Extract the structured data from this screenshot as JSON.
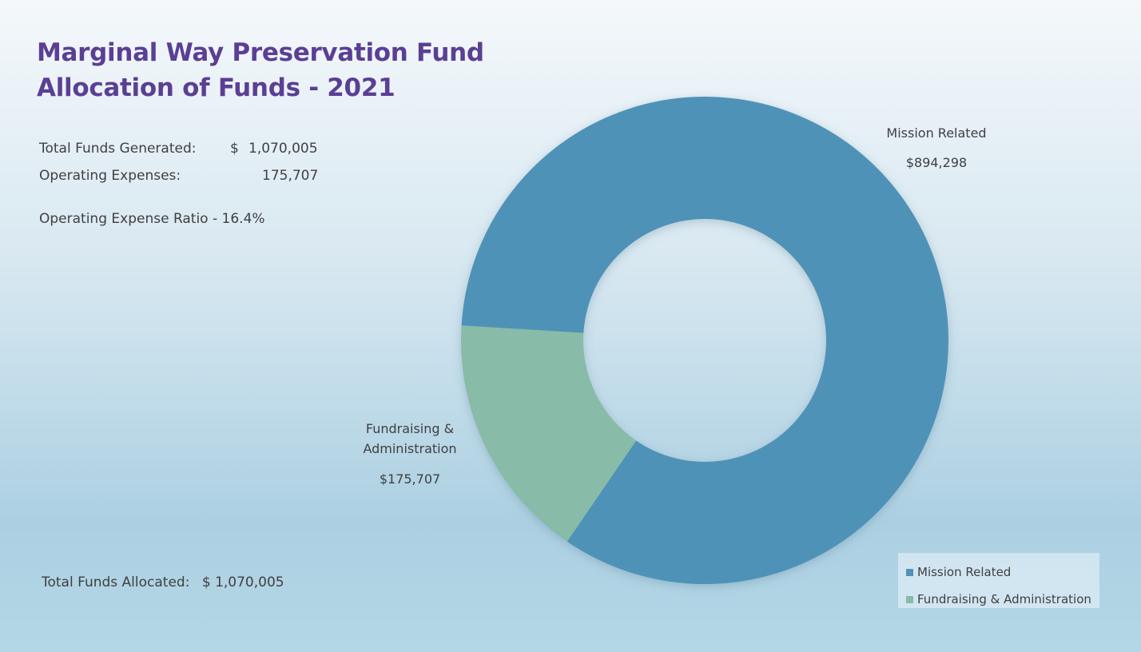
{
  "header": {
    "title_line1": "Marginal Way Preservation Fund",
    "title_line2": "Allocation of Funds - 2021"
  },
  "stats": {
    "total_funds_label": "Total Funds Generated:",
    "total_funds_currency": "$",
    "total_funds_value": "1,070,005",
    "operating_expenses_label": "Operating Expenses:",
    "operating_expenses_value": "175,707",
    "ratio_text": "Operating Expense Ratio - 16.4%"
  },
  "footer": {
    "allocated_label": "Total Funds Allocated:",
    "allocated_value": "$ 1,070,005"
  },
  "colors": {
    "mission": "#5092b8",
    "fundraising": "#88bba8",
    "title": "#5b3f94"
  },
  "chart_data": {
    "type": "pie",
    "variant": "donut",
    "title": "Allocation of Funds - 2021",
    "categories": [
      "Mission Related",
      "Fundraising & Administration"
    ],
    "values": [
      894298,
      175707
    ],
    "data_labels": [
      "$894,298",
      "$175,707"
    ],
    "slice_labels": [
      [
        "Mission Related"
      ],
      [
        "Fundraising &",
        "Administration"
      ]
    ],
    "legend": [
      "Mission Related",
      "Fundraising & Administration"
    ],
    "legend_position": "bottom-right"
  }
}
